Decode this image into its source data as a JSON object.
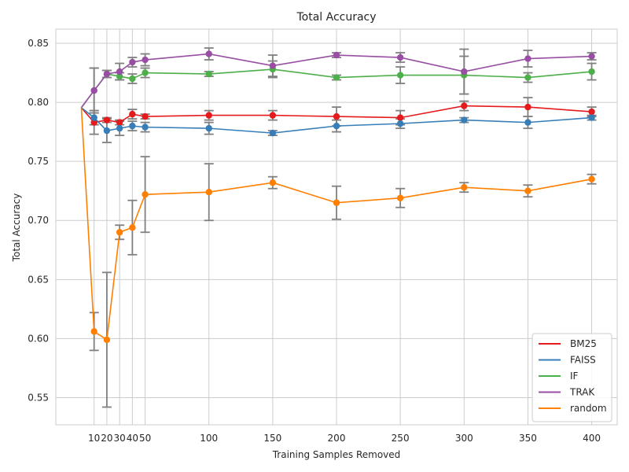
{
  "chart_data": {
    "type": "line",
    "title": "Total Accuracy",
    "xlabel": "Training Samples Removed",
    "ylabel": "Total Accuracy",
    "x": [
      0,
      10,
      20,
      30,
      40,
      50,
      100,
      150,
      200,
      250,
      300,
      350,
      400
    ],
    "xticks": [
      10,
      20,
      30,
      40,
      50,
      100,
      150,
      200,
      250,
      300,
      350,
      400
    ],
    "xtick_labels": [
      "10",
      "20",
      "30",
      "40",
      "50",
      "100",
      "150",
      "200",
      "250",
      "300",
      "350",
      "400"
    ],
    "xlim": [
      -20,
      420
    ],
    "ylim": [
      0.527,
      0.862
    ],
    "yticks": [
      0.55,
      0.6,
      0.65,
      0.7,
      0.75,
      0.8,
      0.85
    ],
    "ytick_labels": [
      "0.55",
      "0.60",
      "0.65",
      "0.70",
      "0.75",
      "0.80",
      "0.85"
    ],
    "grid": true,
    "legend_position": "bottom-right",
    "errorbar_color": "#808080",
    "series": [
      {
        "name": "BM25",
        "color": "#e41a1c",
        "values": [
          0.7955,
          0.783,
          0.785,
          0.783,
          0.79,
          0.788,
          0.789,
          0.789,
          0.788,
          0.787,
          0.797,
          0.796,
          0.792
        ],
        "errors": [
          null,
          0.01,
          0.002,
          0.002,
          0.004,
          0.002,
          0.004,
          0.004,
          0.008,
          0.006,
          0.004,
          0.008,
          0.004
        ]
      },
      {
        "name": "FAISS",
        "color": "#377eb8",
        "values": [
          0.7955,
          0.787,
          0.776,
          0.778,
          0.78,
          0.779,
          0.778,
          0.774,
          0.78,
          0.782,
          0.785,
          0.783,
          0.787
        ],
        "errors": [
          null,
          0.006,
          0.01,
          0.006,
          0.004,
          0.004,
          0.005,
          0.002,
          0.005,
          0.004,
          0.002,
          0.005,
          0.002
        ]
      },
      {
        "name": "IF",
        "color": "#4daf4a",
        "values": [
          0.7955,
          0.81,
          0.824,
          0.822,
          0.82,
          0.825,
          0.824,
          0.828,
          0.821,
          0.823,
          0.823,
          0.821,
          0.826
        ],
        "errors": [
          null,
          0.019,
          0.003,
          0.003,
          0.004,
          0.004,
          0.002,
          0.007,
          0.002,
          0.007,
          0.016,
          0.004,
          0.007
        ]
      },
      {
        "name": "TRAK",
        "color": "#984ea3",
        "values": [
          0.7955,
          0.81,
          0.824,
          0.826,
          0.834,
          0.836,
          0.841,
          0.831,
          0.84,
          0.838,
          0.826,
          0.837,
          0.839
        ],
        "errors": [
          null,
          0.019,
          0.003,
          0.007,
          0.004,
          0.005,
          0.005,
          0.009,
          0.002,
          0.004,
          0.019,
          0.007,
          0.003
        ]
      },
      {
        "name": "random",
        "color": "#ff7f00",
        "values": [
          0.7955,
          0.606,
          0.599,
          0.69,
          0.694,
          0.722,
          0.724,
          0.732,
          0.715,
          0.719,
          0.728,
          0.725,
          0.735
        ],
        "errors": [
          null,
          0.016,
          0.057,
          0.006,
          0.023,
          0.032,
          0.024,
          0.005,
          0.014,
          0.008,
          0.004,
          0.005,
          0.004
        ]
      }
    ]
  }
}
